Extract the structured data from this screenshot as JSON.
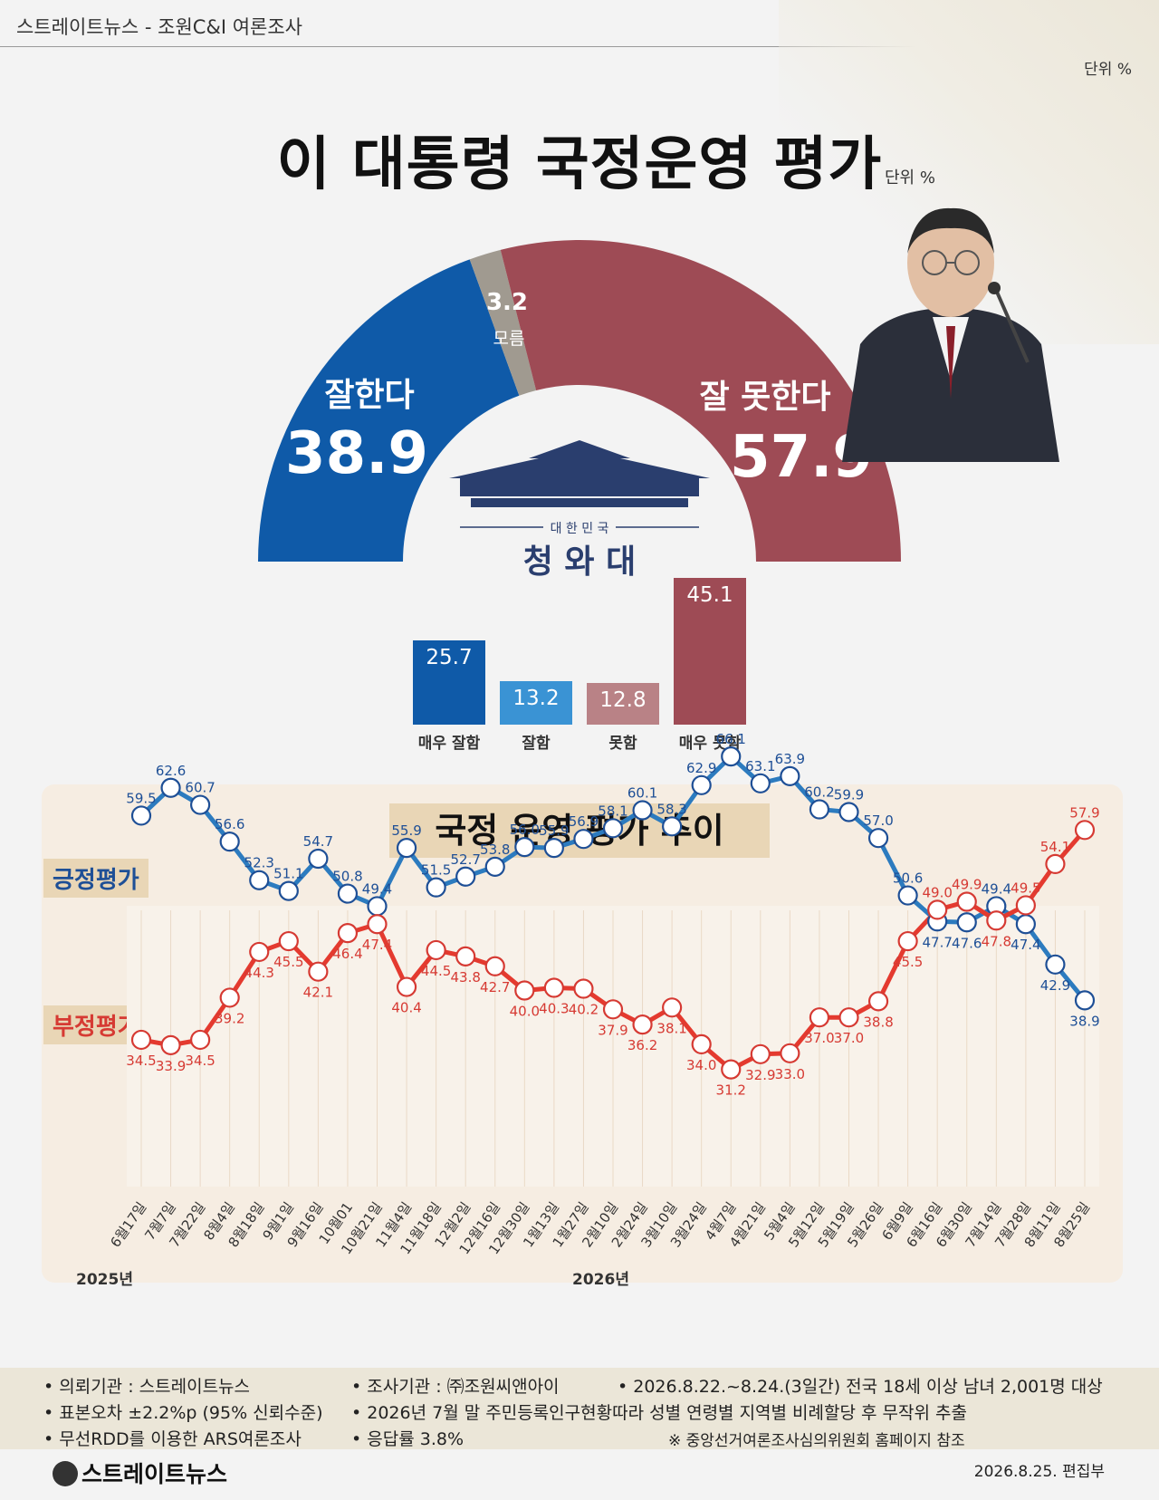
{
  "header": {
    "text": "스트레이트뉴스 - 조원C&I 여론조사"
  },
  "unit_top": "단위 %",
  "title": "이 대통령 국정운영 평가",
  "unit_title": "단위 %",
  "gauge": {
    "positive_label": "잘한다",
    "positive_value": "38.9",
    "unknown_value": "3.2",
    "unknown_label": "모름",
    "negative_label": "잘 못한다",
    "negative_value": "57.9",
    "emblem_small": "대 한 민 국",
    "emblem_big": "청 와 대",
    "colors": {
      "positive": "#0f5aa8",
      "negative": "#9e4b55",
      "unknown": "#a09a90"
    }
  },
  "detail_bars": [
    {
      "label": "매우 잘함",
      "value": 25.7,
      "text": "25.7",
      "color": "#0f5aa8"
    },
    {
      "label": "잘함",
      "value": 13.2,
      "text": "13.2",
      "color": "#3a93d4"
    },
    {
      "label": "못함",
      "value": 12.8,
      "text": "12.8",
      "color": "#b98286"
    },
    {
      "label": "매우 못함",
      "value": 45.1,
      "text": "45.1",
      "color": "#9e4b55"
    }
  ],
  "trend": {
    "title": "국정 운영 평가 추이",
    "legend_positive": "긍정평가",
    "legend_negative": "부정평가",
    "year_2025": "2025년",
    "year_2026": "2026년"
  },
  "chart_data": {
    "type": "line",
    "x": [
      "6월17일",
      "7월7일",
      "7월22일",
      "8월4일",
      "8월18일",
      "9월1일",
      "9월16일",
      "10월01",
      "10월21일",
      "11월4일",
      "11월18일",
      "12월2일",
      "12월16일",
      "12월30일",
      "1월13일",
      "1월27일",
      "2월10일",
      "2월24일",
      "3월10일",
      "3월24일",
      "4월7일",
      "4월21일",
      "5월4일",
      "5월12일",
      "5월19일",
      "5월26일",
      "6월9일",
      "6월16일",
      "6월30일",
      "7월14일",
      "7월28일",
      "8월11일",
      "8월25일"
    ],
    "series": [
      {
        "name": "긍정평가",
        "color": "#2c7bbf",
        "values": [
          59.5,
          62.6,
          60.7,
          56.6,
          52.3,
          51.1,
          54.7,
          50.8,
          49.4,
          55.9,
          51.5,
          52.7,
          53.8,
          56.0,
          55.9,
          56.9,
          58.1,
          60.1,
          58.3,
          62.9,
          66.1,
          63.1,
          63.9,
          60.2,
          59.9,
          57.0,
          50.6,
          47.7,
          47.6,
          49.4,
          47.4,
          42.9,
          38.9
        ]
      },
      {
        "name": "부정평가",
        "color": "#e43a2f",
        "values": [
          34.5,
          33.9,
          34.5,
          39.2,
          44.3,
          45.5,
          42.1,
          46.4,
          47.4,
          40.4,
          44.5,
          43.8,
          42.7,
          40.0,
          40.3,
          40.2,
          37.9,
          36.2,
          38.1,
          34.0,
          31.2,
          32.9,
          33.0,
          37.0,
          37.0,
          38.8,
          45.5,
          49.0,
          49.9,
          47.8,
          49.5,
          54.1,
          57.9
        ]
      }
    ],
    "ylim": [
      20,
      75
    ]
  },
  "footer": {
    "l1c1": "• 의뢰기관 : 스트레이트뉴스",
    "l1c2": "• 조사기관 : ㈜조원씨앤아이",
    "l1c3": "• 2026.8.22.~8.24.(3일간) 전국 18세 이상 남녀 2,001명 대상",
    "l2c1": "• 표본오차 ±2.2%p (95% 신뢰수준)",
    "l2c2": "• 2026년 7월 말 주민등록인구현황따라 성별 연령별 지역별 비례할당 후 무작위 추출",
    "l3c1": "• 무선RDD를 이용한 ARS여론조사",
    "l3c2": "• 응답률 3.8%",
    "l3c3": "※ 중앙선거여론조사심의위원회 홈페이지 참조",
    "logo": "스트레이트뉴스",
    "date": "2026.8.25.  편집부"
  }
}
